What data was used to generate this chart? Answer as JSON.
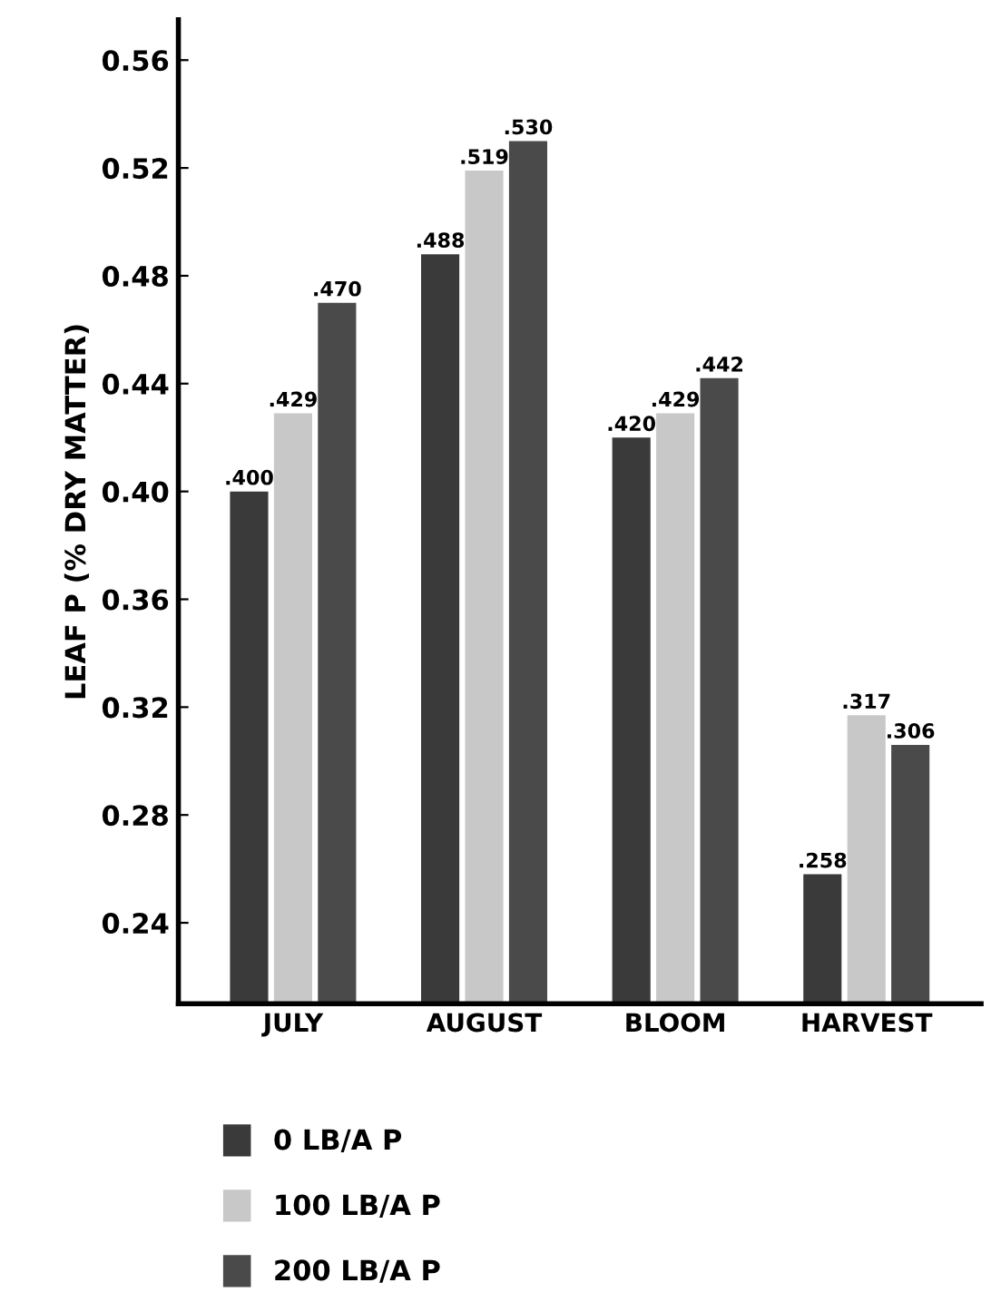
{
  "chart_data": {
    "type": "bar",
    "ylabel": "LEAF P (% DRY MATTER)",
    "categories": [
      "JULY",
      "AUGUST",
      "BLOOM",
      "HARVEST"
    ],
    "series": [
      {
        "name": "0 LB/A P",
        "color": "#3a3a3a",
        "values": [
          0.4,
          0.488,
          0.42,
          0.258
        ],
        "value_labels": [
          ".400",
          ".488",
          ".420",
          ".258"
        ]
      },
      {
        "name": "100 LB/A P",
        "color": "#c8c8c8",
        "values": [
          0.429,
          0.519,
          0.429,
          0.317
        ],
        "value_labels": [
          ".429",
          ".519",
          ".429",
          ".317"
        ]
      },
      {
        "name": "200 LB/A P",
        "color": "#4a4a4a",
        "values": [
          0.47,
          0.53,
          0.442,
          0.306
        ],
        "value_labels": [
          ".470",
          ".530",
          ".442",
          ".306"
        ]
      }
    ],
    "ylim": [
      0.21,
      0.575
    ],
    "yticks": [
      {
        "value": 0.24,
        "label": "0.24"
      },
      {
        "value": 0.28,
        "label": "0.28"
      },
      {
        "value": 0.32,
        "label": "0.32"
      },
      {
        "value": 0.36,
        "label": "0.36"
      },
      {
        "value": 0.4,
        "label": "0.40"
      },
      {
        "value": 0.44,
        "label": "0.44"
      },
      {
        "value": 0.48,
        "label": "0.48"
      },
      {
        "value": 0.52,
        "label": "0.52"
      },
      {
        "value": 0.56,
        "label": "0.56"
      }
    ],
    "grid": false,
    "legend": "bottom"
  }
}
